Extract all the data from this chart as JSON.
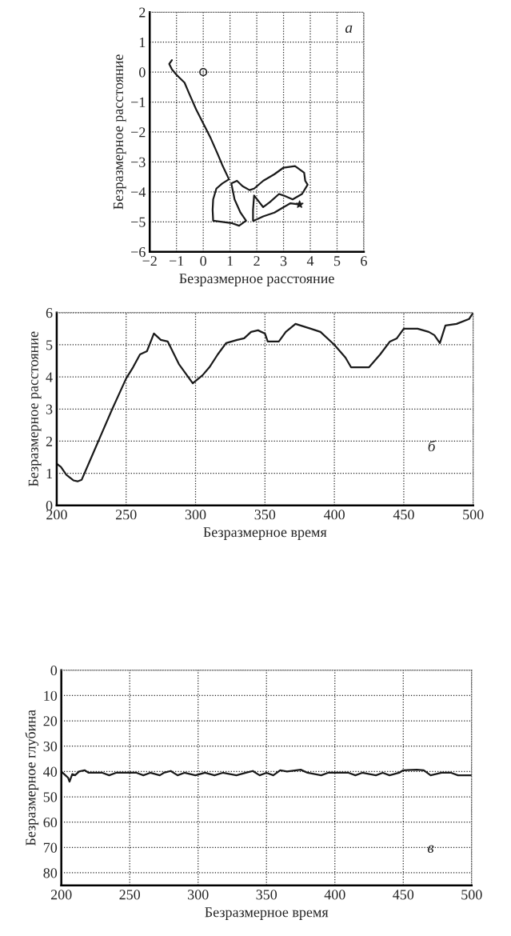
{
  "chart_data": [
    {
      "type": "line",
      "xlabel": "Безразмерное расстояние",
      "ylabel": "Безразмерное расстояние",
      "annotations": [
        "а"
      ],
      "xlim": [
        -2,
        6
      ],
      "ylim": [
        -6,
        2
      ],
      "xticks": [
        {
          "value": -2,
          "label": "−2"
        },
        {
          "value": -1,
          "label": "−1"
        },
        0,
        1,
        2,
        3,
        4,
        5,
        6
      ],
      "yticks": [
        {
          "value": -6,
          "label": "−6"
        },
        {
          "value": -5,
          "label": "−5"
        },
        {
          "value": -4,
          "label": "−4"
        },
        {
          "value": -3,
          "label": "−3"
        },
        {
          "value": -2,
          "label": "−2"
        },
        {
          "value": -1,
          "label": "−1"
        },
        0,
        1,
        2
      ],
      "grid": true,
      "series": [
        {
          "color": "#1a1a1a",
          "x": [
            -1.17,
            -1.27,
            -1.17,
            -1.0,
            -0.7,
            -0.53,
            -0.27,
            0.03,
            0.28,
            0.54,
            0.71,
            0.92,
            0.96,
            0.71,
            0.49,
            0.37,
            0.35,
            0.37,
            0.71,
            1.05,
            1.34,
            1.6,
            1.39,
            1.17,
            1.05,
            1.26,
            1.47,
            1.73,
            1.9,
            2.24,
            2.66,
            3.0,
            3.43,
            3.77,
            3.81,
            3.9,
            3.69,
            3.34,
            3.0,
            2.83,
            2.49,
            2.24,
            1.9,
            1.86,
            1.86,
            1.9,
            2.24,
            2.66,
            3.0,
            3.26,
            3.6
          ],
          "values": [
            0.4,
            0.27,
            0.09,
            -0.09,
            -0.35,
            -0.71,
            -1.24,
            -1.77,
            -2.21,
            -2.74,
            -3.1,
            -3.5,
            -3.58,
            -3.72,
            -3.89,
            -4.25,
            -4.6,
            -4.96,
            -5.0,
            -5.04,
            -5.13,
            -4.96,
            -4.69,
            -4.25,
            -3.72,
            -3.63,
            -3.81,
            -3.94,
            -3.89,
            -3.63,
            -3.41,
            -3.19,
            -3.14,
            -3.36,
            -3.63,
            -3.76,
            -4.07,
            -4.25,
            -4.12,
            -4.07,
            -4.34,
            -4.51,
            -4.12,
            -4.6,
            -4.96,
            -4.96,
            -4.82,
            -4.69,
            -4.51,
            -4.38,
            -4.42
          ]
        },
        {
          "type": "scatter",
          "marker": "circle",
          "color": "#1a1a1a",
          "x": [
            0
          ],
          "values": [
            0
          ]
        },
        {
          "type": "scatter",
          "marker": "star",
          "color": "#1a1a1a",
          "x": [
            3.6
          ],
          "values": [
            -4.42
          ]
        }
      ]
    },
    {
      "type": "line",
      "xlabel": "Безразмерное время",
      "ylabel": "Безразмерное расстояние",
      "annotations": [
        "б"
      ],
      "xlim": [
        200,
        500
      ],
      "ylim": [
        0,
        6
      ],
      "xticks": [
        200,
        250,
        300,
        350,
        400,
        450,
        500
      ],
      "yticks": [
        0,
        1,
        2,
        3,
        4,
        5,
        6
      ],
      "grid": true,
      "series": [
        {
          "color": "#1a1a1a",
          "x": [
            200,
            203,
            207,
            212,
            215,
            218,
            225,
            232,
            240,
            250,
            255,
            260,
            265,
            270,
            275,
            280,
            288,
            298,
            305,
            310,
            316,
            322,
            330,
            335,
            340,
            345,
            350,
            352,
            360,
            365,
            372,
            383,
            390,
            400,
            408,
            412,
            425,
            433,
            440,
            445,
            450,
            460,
            468,
            472,
            476,
            480,
            488,
            497,
            500
          ],
          "values": [
            1.3,
            1.2,
            0.95,
            0.78,
            0.75,
            0.8,
            1.5,
            2.2,
            3.0,
            3.95,
            4.3,
            4.7,
            4.8,
            5.35,
            5.15,
            5.1,
            4.4,
            3.8,
            4.05,
            4.3,
            4.7,
            5.05,
            5.15,
            5.2,
            5.4,
            5.45,
            5.35,
            5.1,
            5.1,
            5.4,
            5.65,
            5.5,
            5.4,
            5.0,
            4.6,
            4.3,
            4.3,
            4.7,
            5.1,
            5.2,
            5.5,
            5.5,
            5.4,
            5.3,
            5.05,
            5.6,
            5.65,
            5.8,
            6.0
          ]
        }
      ]
    },
    {
      "type": "line",
      "xlabel": "Безразмерное время",
      "ylabel": "Безразмерное глубина",
      "annotations": [
        "в"
      ],
      "xlim": [
        200,
        500
      ],
      "ylim": [
        85,
        0
      ],
      "xticks": [
        200,
        250,
        300,
        350,
        400,
        450,
        500
      ],
      "yticks": [
        0,
        10,
        20,
        30,
        40,
        50,
        60,
        70,
        80
      ],
      "grid": true,
      "series": [
        {
          "color": "#1a1a1a",
          "x": [
            200,
            203,
            205,
            206,
            208,
            210,
            213,
            217,
            220,
            230,
            235,
            240,
            255,
            260,
            265,
            272,
            275,
            280,
            285,
            290,
            298,
            305,
            312,
            318,
            328,
            335,
            340,
            345,
            350,
            355,
            360,
            365,
            375,
            380,
            390,
            395,
            410,
            415,
            420,
            430,
            435,
            440,
            447,
            450,
            460,
            465,
            470,
            478,
            485,
            490,
            500
          ],
          "values": [
            40,
            41.5,
            42.5,
            44,
            41,
            41.5,
            40,
            39.5,
            40.5,
            40.5,
            41.5,
            40.5,
            40.5,
            41.5,
            40.5,
            41.5,
            40.5,
            39.8,
            41.5,
            40.5,
            41.5,
            40.5,
            41.5,
            40.5,
            41.5,
            40.5,
            39.8,
            41.5,
            40.5,
            41.5,
            39.5,
            40,
            39.3,
            40.5,
            41.5,
            40.5,
            40.5,
            41.5,
            40.5,
            41.5,
            40.5,
            41.5,
            40.5,
            39.5,
            39.3,
            39.5,
            41.5,
            40.5,
            40.5,
            41.5,
            41.5
          ]
        }
      ]
    }
  ]
}
